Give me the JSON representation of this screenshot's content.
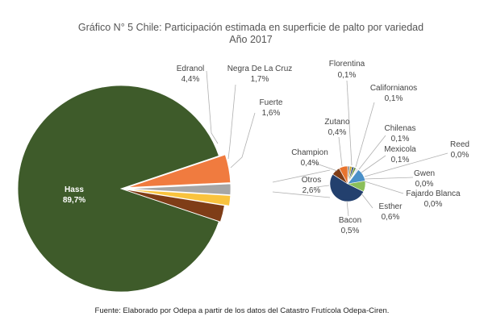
{
  "chart_data": {
    "type": "pie",
    "title": "Gráfico N° 5 Chile: Participación estimada en superficie de palto por variedad",
    "subtitle": "Año 2017",
    "main_pie": {
      "slices": [
        {
          "name": "Hass",
          "label": "89,7%",
          "value": 89.7,
          "color": "#3e5b2a"
        },
        {
          "name": "Edranol",
          "label": "4,4%",
          "value": 4.4,
          "color": "#f07b3f"
        },
        {
          "name": "Negra De La Cruz",
          "label": "1,7%",
          "value": 1.7,
          "color": "#a6a6a6"
        },
        {
          "name": "Fuerte",
          "label": "1,6%",
          "value": 1.6,
          "color": "#f9c33e"
        },
        {
          "name": "Otros",
          "label": "2,6%",
          "value": 2.6,
          "color": "#7f3d17"
        }
      ]
    },
    "secondary_pie": {
      "of": "Otros",
      "slices": [
        {
          "name": "Florentina",
          "label": "0,1%",
          "value": 0.1,
          "color": "#8a8a8a"
        },
        {
          "name": "Californianos",
          "label": "0,1%",
          "value": 0.1,
          "color": "#c9a227"
        },
        {
          "name": "Chilenas",
          "label": "0,1%",
          "value": 0.1,
          "color": "#2f4e7a"
        },
        {
          "name": "Mexicola",
          "label": "0,1%",
          "value": 0.1,
          "color": "#6a8f3a"
        },
        {
          "name": "Reed",
          "label": "0,0%",
          "value": 0.0,
          "color": "#9dc3e6"
        },
        {
          "name": "Gwen",
          "label": "0,0%",
          "value": 0.0,
          "color": "#d9b38c"
        },
        {
          "name": "Fajardo Blanca",
          "label": "0,0%",
          "value": 0.0,
          "color": "#b4c7e7"
        },
        {
          "name": "Esther",
          "label": "0,6%",
          "value": 0.6,
          "color": "#4a90c8"
        },
        {
          "name": "Bacon",
          "label": "0,5%",
          "value": 0.5,
          "color": "#8bbf5a"
        },
        {
          "name": "Otros",
          "label": "2,6%",
          "value": 2.6,
          "color": "#23406e"
        },
        {
          "name": "Champion",
          "label": "0,4%",
          "value": 0.4,
          "color": "#7f3d17"
        },
        {
          "name": "Zutano",
          "label": "0,4%",
          "value": 0.4,
          "color": "#e8742e"
        }
      ]
    },
    "legend": "none",
    "source": "Fuente: Elaborado por Odepa a partir de los datos del Catastro Frutícola Odepa-Ciren."
  }
}
